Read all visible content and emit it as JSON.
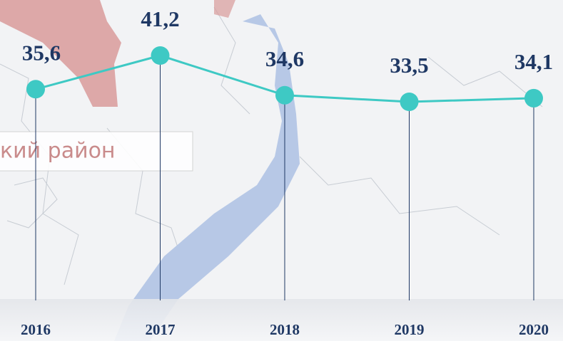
{
  "background": {
    "label": "кий район"
  },
  "chart_data": {
    "type": "line",
    "categories": [
      "2016",
      "2017",
      "2018",
      "2019",
      "2020"
    ],
    "series": [
      {
        "color": "#3ec9c4",
        "values": [
          35.6,
          41.2,
          34.6,
          33.5,
          34.1
        ],
        "value_labels": [
          "35,6",
          "41,2",
          "34,6",
          "33,5",
          "34,1"
        ]
      }
    ]
  }
}
